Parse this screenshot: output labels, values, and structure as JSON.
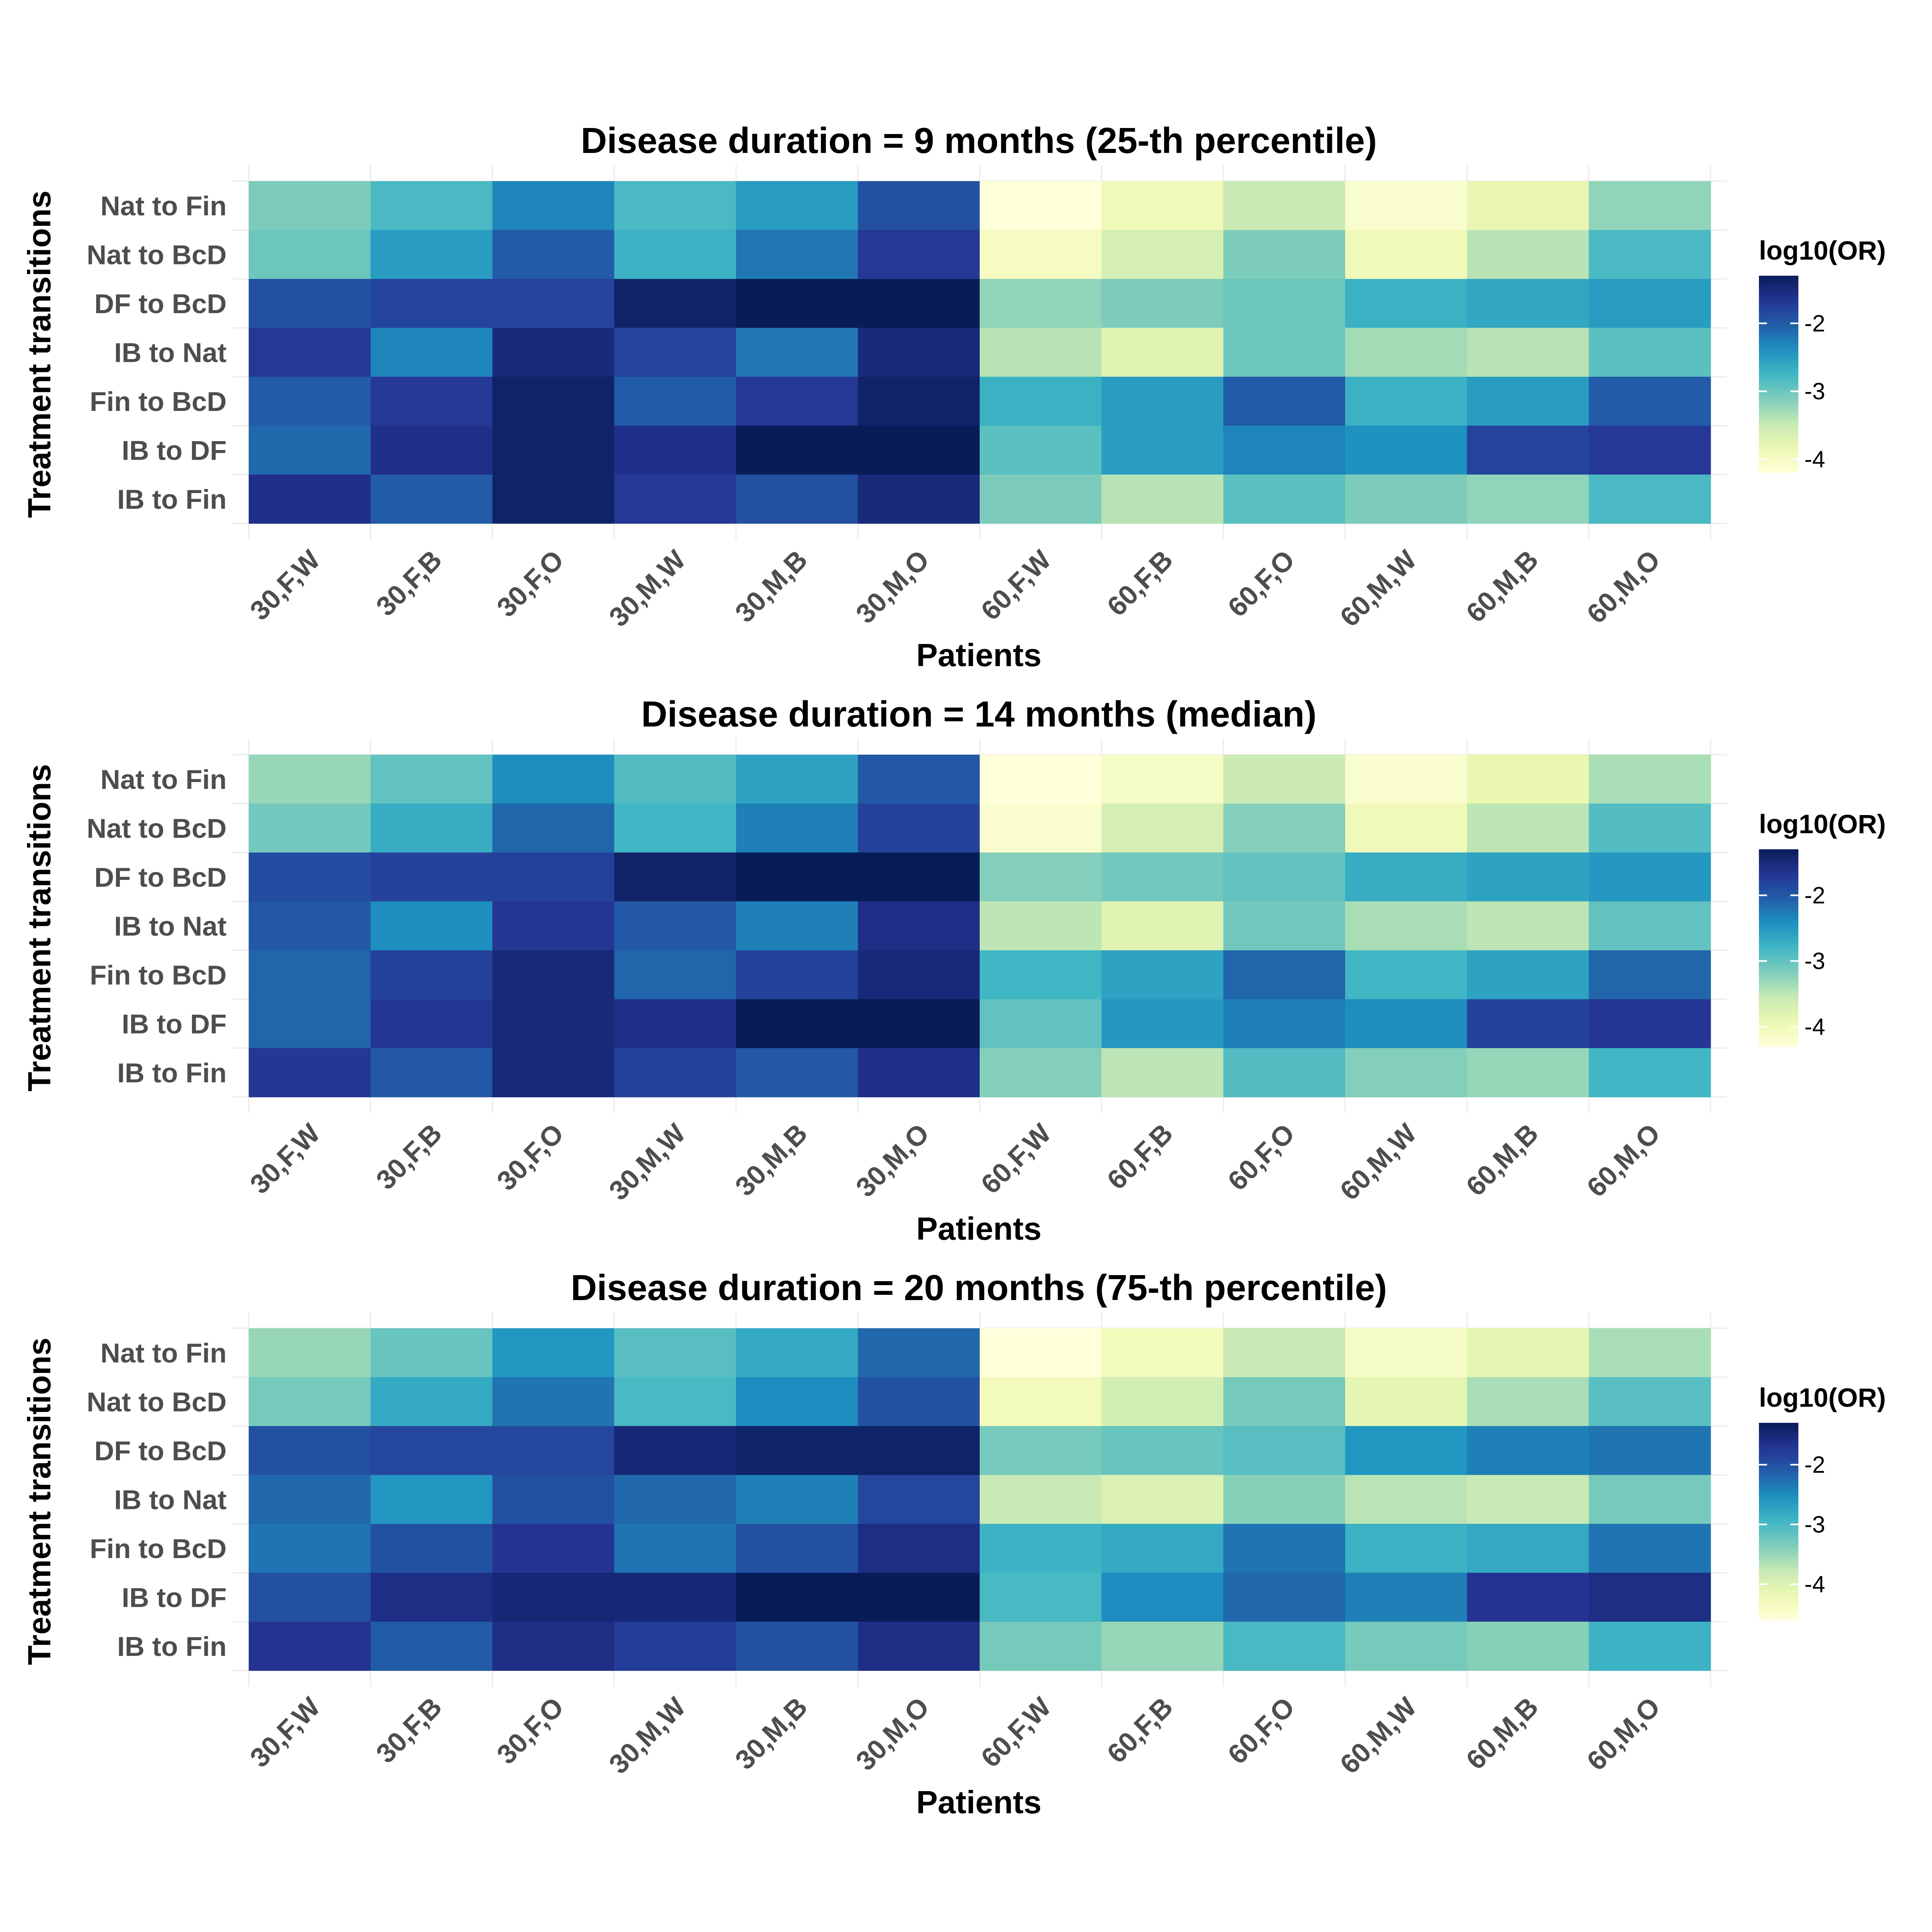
{
  "chart_data": [
    {
      "type": "heatmap",
      "title": "Disease duration = 9 months (25-th percentile)",
      "xlabel": "Patients",
      "ylabel": "Treatment transitions",
      "x": [
        "30,F,W",
        "30,F,B",
        "30,F,O",
        "30,M,W",
        "30,M,B",
        "30,M,O",
        "60,F,W",
        "60,F,B",
        "60,F,O",
        "60,M,W",
        "60,M,B",
        "60,M,O"
      ],
      "y": [
        "Nat to Fin",
        "Nat to BcD",
        "DF to BcD",
        "IB to Nat",
        "Fin to BcD",
        "IB to DF",
        "IB to Fin"
      ],
      "values": [
        [
          -3.1,
          -2.8,
          -2.3,
          -2.8,
          -2.5,
          -1.9,
          -4.3,
          -3.9,
          -3.5,
          -4.1,
          -3.8,
          -3.2
        ],
        [
          -3.0,
          -2.5,
          -2.0,
          -2.7,
          -2.2,
          -1.7,
          -4.0,
          -3.6,
          -3.1,
          -3.9,
          -3.4,
          -2.8
        ],
        [
          -1.9,
          -1.8,
          -1.8,
          -1.4,
          -1.3,
          -1.3,
          -3.2,
          -3.1,
          -3.0,
          -2.7,
          -2.6,
          -2.5
        ],
        [
          -1.7,
          -2.3,
          -1.5,
          -1.8,
          -2.2,
          -1.5,
          -3.4,
          -3.7,
          -3.0,
          -3.3,
          -3.4,
          -2.9
        ],
        [
          -2.0,
          -1.7,
          -1.4,
          -2.0,
          -1.7,
          -1.4,
          -2.7,
          -2.5,
          -2.0,
          -2.7,
          -2.5,
          -2.0
        ],
        [
          -2.1,
          -1.6,
          -1.4,
          -1.6,
          -1.1,
          -0.9,
          -2.9,
          -2.5,
          -2.3,
          -2.4,
          -1.8,
          -1.7
        ],
        [
          -1.6,
          -2.0,
          -1.4,
          -1.7,
          -1.9,
          -1.5,
          -3.1,
          -3.4,
          -2.9,
          -3.1,
          -3.2,
          -2.8
        ]
      ],
      "legend": {
        "title": "log10(OR)",
        "ticks": [
          -4,
          -3,
          -2
        ],
        "range": [
          -4.2,
          -1.3
        ],
        "position": "right"
      }
    },
    {
      "type": "heatmap",
      "title": "Disease duration = 14 months (median)",
      "xlabel": "Patients",
      "ylabel": "Treatment transitions",
      "x": [
        "30,F,W",
        "30,F,B",
        "30,F,O",
        "30,M,W",
        "30,M,B",
        "30,M,O",
        "60,F,W",
        "60,F,B",
        "60,F,O",
        "60,M,W",
        "60,M,B",
        "60,M,O"
      ],
      "y": [
        "Nat to Fin",
        "Nat to BcD",
        "DF to BcD",
        "IB to Nat",
        "Fin to BcD",
        "IB to DF",
        "IB to Fin"
      ],
      "values": [
        [
          -3.3,
          -3.0,
          -2.4,
          -2.9,
          -2.6,
          -2.0,
          -4.4,
          -4.1,
          -3.6,
          -4.2,
          -3.9,
          -3.4
        ],
        [
          -3.1,
          -2.7,
          -2.1,
          -2.8,
          -2.3,
          -1.8,
          -4.2,
          -3.7,
          -3.2,
          -4.0,
          -3.5,
          -2.9
        ],
        [
          -1.9,
          -1.8,
          -1.8,
          -1.4,
          -1.3,
          -1.3,
          -3.2,
          -3.1,
          -3.0,
          -2.7,
          -2.6,
          -2.5
        ],
        [
          -2.0,
          -2.4,
          -1.7,
          -2.0,
          -2.3,
          -1.6,
          -3.5,
          -3.8,
          -3.1,
          -3.4,
          -3.5,
          -3.0
        ],
        [
          -2.1,
          -1.8,
          -1.5,
          -2.1,
          -1.8,
          -1.5,
          -2.8,
          -2.6,
          -2.1,
          -2.8,
          -2.6,
          -2.1
        ],
        [
          -2.1,
          -1.7,
          -1.5,
          -1.6,
          -1.2,
          -0.9,
          -3.0,
          -2.5,
          -2.3,
          -2.4,
          -1.8,
          -1.7
        ],
        [
          -1.7,
          -2.0,
          -1.5,
          -1.8,
          -2.0,
          -1.6,
          -3.2,
          -3.5,
          -2.9,
          -3.2,
          -3.3,
          -2.8
        ]
      ],
      "legend": {
        "title": "log10(OR)",
        "ticks": [
          -4,
          -3,
          -2
        ],
        "range": [
          -4.3,
          -1.3
        ],
        "position": "right"
      }
    },
    {
      "type": "heatmap",
      "title": "Disease duration = 20 months (75-th percentile)",
      "xlabel": "Patients",
      "ylabel": "Treatment transitions",
      "x": [
        "30,F,W",
        "30,F,B",
        "30,F,O",
        "30,M,W",
        "30,M,B",
        "30,M,O",
        "60,F,W",
        "60,F,B",
        "60,F,O",
        "60,M,W",
        "60,M,B",
        "60,M,O"
      ],
      "y": [
        "Nat to Fin",
        "Nat to BcD",
        "DF to BcD",
        "IB to Nat",
        "Fin to BcD",
        "IB to DF",
        "IB to Fin"
      ],
      "values": [
        [
          -3.5,
          -3.2,
          -2.6,
          -3.1,
          -2.8,
          -2.2,
          -4.6,
          -4.3,
          -3.8,
          -4.4,
          -4.1,
          -3.6
        ],
        [
          -3.3,
          -2.8,
          -2.3,
          -3.0,
          -2.5,
          -2.0,
          -4.3,
          -3.9,
          -3.3,
          -4.1,
          -3.6,
          -3.1
        ],
        [
          -2.0,
          -1.9,
          -1.9,
          -1.5,
          -1.4,
          -1.4,
          -3.3,
          -3.2,
          -3.1,
          -2.6,
          -2.4,
          -2.3
        ],
        [
          -2.2,
          -2.6,
          -2.0,
          -2.2,
          -2.4,
          -1.9,
          -3.8,
          -4.0,
          -3.4,
          -3.7,
          -3.8,
          -3.3
        ],
        [
          -2.3,
          -2.0,
          -1.7,
          -2.3,
          -2.0,
          -1.6,
          -2.9,
          -2.8,
          -2.3,
          -2.9,
          -2.8,
          -2.3
        ],
        [
          -2.0,
          -1.6,
          -1.5,
          -1.5,
          -1.1,
          -0.9,
          -3.0,
          -2.5,
          -2.2,
          -2.4,
          -1.7,
          -1.6
        ],
        [
          -1.7,
          -2.1,
          -1.6,
          -1.8,
          -2.0,
          -1.6,
          -3.3,
          -3.5,
          -3.0,
          -3.3,
          -3.4,
          -2.9
        ]
      ],
      "legend": {
        "title": "log10(OR)",
        "ticks": [
          -4,
          -3,
          -2
        ],
        "range": [
          -4.6,
          -1.3
        ],
        "position": "right"
      }
    }
  ],
  "colors": {
    "scale": [
      "#ffffd9",
      "#edf8b1",
      "#c7e9b4",
      "#7fcdbb",
      "#41b6c4",
      "#1d91c0",
      "#225ea8",
      "#253494",
      "#081d58"
    ],
    "gridline": "#ebebeb",
    "tick_text": "#4d4d4d",
    "title_text": "#000000"
  }
}
